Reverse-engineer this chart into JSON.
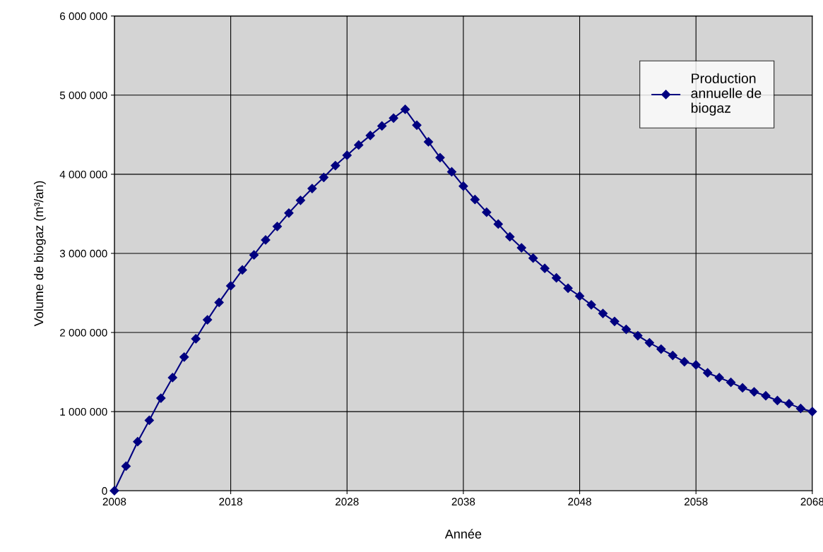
{
  "chart_data": {
    "type": "line",
    "xlabel": "Année",
    "ylabel": "Volume de biogaz (m³/an)",
    "x": [
      2008,
      2009,
      2010,
      2011,
      2012,
      2013,
      2014,
      2015,
      2016,
      2017,
      2018,
      2019,
      2020,
      2021,
      2022,
      2023,
      2024,
      2025,
      2026,
      2027,
      2028,
      2029,
      2030,
      2031,
      2032,
      2033,
      2034,
      2035,
      2036,
      2037,
      2038,
      2039,
      2040,
      2041,
      2042,
      2043,
      2044,
      2045,
      2046,
      2047,
      2048,
      2049,
      2050,
      2051,
      2052,
      2053,
      2054,
      2055,
      2056,
      2057,
      2058,
      2059,
      2060,
      2061,
      2062,
      2063,
      2064,
      2065,
      2066,
      2067,
      2068
    ],
    "series": [
      {
        "name": "Production annuelle de biogaz",
        "color": "#000080",
        "values": [
          0,
          310000,
          620000,
          890000,
          1170000,
          1430000,
          1690000,
          1920000,
          2160000,
          2380000,
          2590000,
          2790000,
          2980000,
          3170000,
          3340000,
          3510000,
          3670000,
          3820000,
          3960000,
          4110000,
          4240000,
          4370000,
          4490000,
          4610000,
          4710000,
          4820000,
          4620000,
          4410000,
          4210000,
          4030000,
          3850000,
          3680000,
          3520000,
          3370000,
          3210000,
          3070000,
          2940000,
          2810000,
          2690000,
          2560000,
          2460000,
          2350000,
          2240000,
          2140000,
          2040000,
          1960000,
          1870000,
          1790000,
          1710000,
          1630000,
          1590000,
          1490000,
          1430000,
          1370000,
          1300000,
          1250000,
          1200000,
          1140000,
          1100000,
          1040000,
          1000000
        ]
      }
    ],
    "xlim": [
      2008,
      2068
    ],
    "xticks": [
      2008,
      2018,
      2028,
      2038,
      2048,
      2058,
      2068
    ],
    "ylim": [
      0,
      6000000
    ],
    "yticks": [
      0,
      {
        "value": 1000000,
        "label": "1 000 000"
      },
      {
        "value": 2000000,
        "label": "2 000 000"
      },
      {
        "value": 3000000,
        "label": "3 000 000"
      },
      {
        "value": 4000000,
        "label": "4 000 000"
      },
      {
        "value": 5000000,
        "label": "5 000 000"
      },
      {
        "value": 6000000,
        "label": "6 000 000"
      }
    ],
    "grid": true,
    "legend": "top right",
    "marker": "diamond",
    "line_style": "solid"
  }
}
